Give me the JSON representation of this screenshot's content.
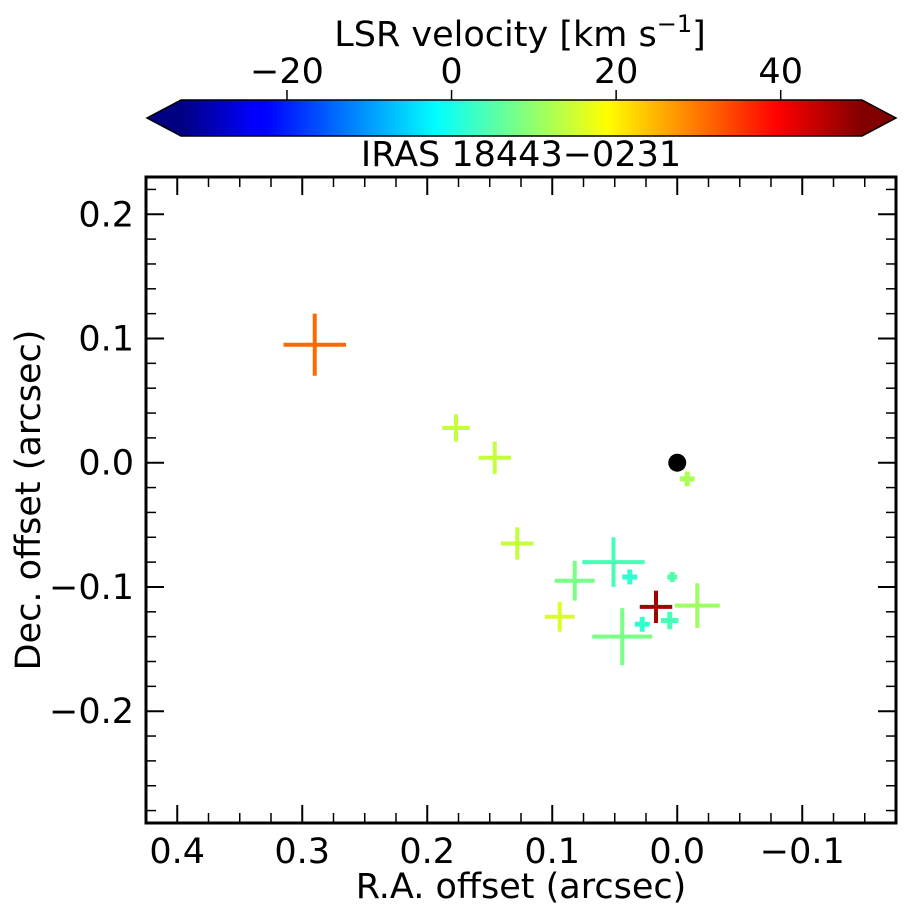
{
  "chart_data": {
    "type": "scatter",
    "title": "IRAS 18443−0231",
    "xlabel": "R.A. offset (arcsec)",
    "ylabel": "Dec. offset (arcsec)",
    "xlim": [
      0.425,
      -0.175
    ],
    "ylim": [
      -0.29,
      0.23
    ],
    "x_ticks": [
      0.4,
      0.3,
      0.2,
      0.1,
      0.0,
      -0.1
    ],
    "x_tick_labels": [
      "0.4",
      "0.3",
      "0.2",
      "0.1",
      "0.0",
      "−0.1"
    ],
    "y_ticks": [
      0.2,
      0.1,
      0.0,
      -0.1,
      -0.2
    ],
    "y_tick_labels": [
      "0.2",
      "0.1",
      "0.0",
      "−0.1",
      "−0.2"
    ],
    "colorbar": {
      "label": "LSR velocity [km s",
      "label_sup": "−1",
      "label_end": "]",
      "vmin": -33,
      "vmax": 50,
      "colormap": "jet",
      "ticks": [
        -20,
        0,
        20,
        40
      ],
      "tick_labels": [
        "−20",
        "0",
        "20",
        "40"
      ],
      "extend": "both"
    },
    "reference_marker": {
      "x": 0.0,
      "y": 0.0,
      "color": "#000000"
    },
    "points": [
      {
        "x": 0.29,
        "y": 0.095,
        "xerr": 0.025,
        "yerr": 0.025,
        "v": 31
      },
      {
        "x": 0.177,
        "y": 0.028,
        "xerr": 0.011,
        "yerr": 0.011,
        "v": 14
      },
      {
        "x": 0.146,
        "y": 0.004,
        "xerr": 0.013,
        "yerr": 0.013,
        "v": 14
      },
      {
        "x": 0.128,
        "y": -0.065,
        "xerr": 0.013,
        "yerr": 0.013,
        "v": 14
      },
      {
        "x": -0.008,
        "y": -0.013,
        "xerr": 0.006,
        "yerr": 0.006,
        "v": 12
      },
      {
        "x": 0.051,
        "y": -0.08,
        "xerr": 0.025,
        "yerr": 0.02,
        "v": 4
      },
      {
        "x": 0.038,
        "y": -0.092,
        "xerr": 0.006,
        "yerr": 0.006,
        "v": 2
      },
      {
        "x": 0.082,
        "y": -0.095,
        "xerr": 0.016,
        "yerr": 0.016,
        "v": 8
      },
      {
        "x": 0.004,
        "y": -0.092,
        "xerr": 0.004,
        "yerr": 0.004,
        "v": 5
      },
      {
        "x": 0.094,
        "y": -0.124,
        "xerr": 0.012,
        "yerr": 0.012,
        "v": 16
      },
      {
        "x": 0.017,
        "y": -0.116,
        "xerr": 0.013,
        "yerr": 0.013,
        "v": 47
      },
      {
        "x": -0.016,
        "y": -0.115,
        "xerr": 0.018,
        "yerr": 0.018,
        "v": 11
      },
      {
        "x": 0.028,
        "y": -0.13,
        "xerr": 0.006,
        "yerr": 0.006,
        "v": 2
      },
      {
        "x": 0.006,
        "y": -0.127,
        "xerr": 0.007,
        "yerr": 0.007,
        "v": 4
      },
      {
        "x": 0.044,
        "y": -0.14,
        "xerr": 0.024,
        "yerr": 0.023,
        "v": 8
      }
    ]
  }
}
